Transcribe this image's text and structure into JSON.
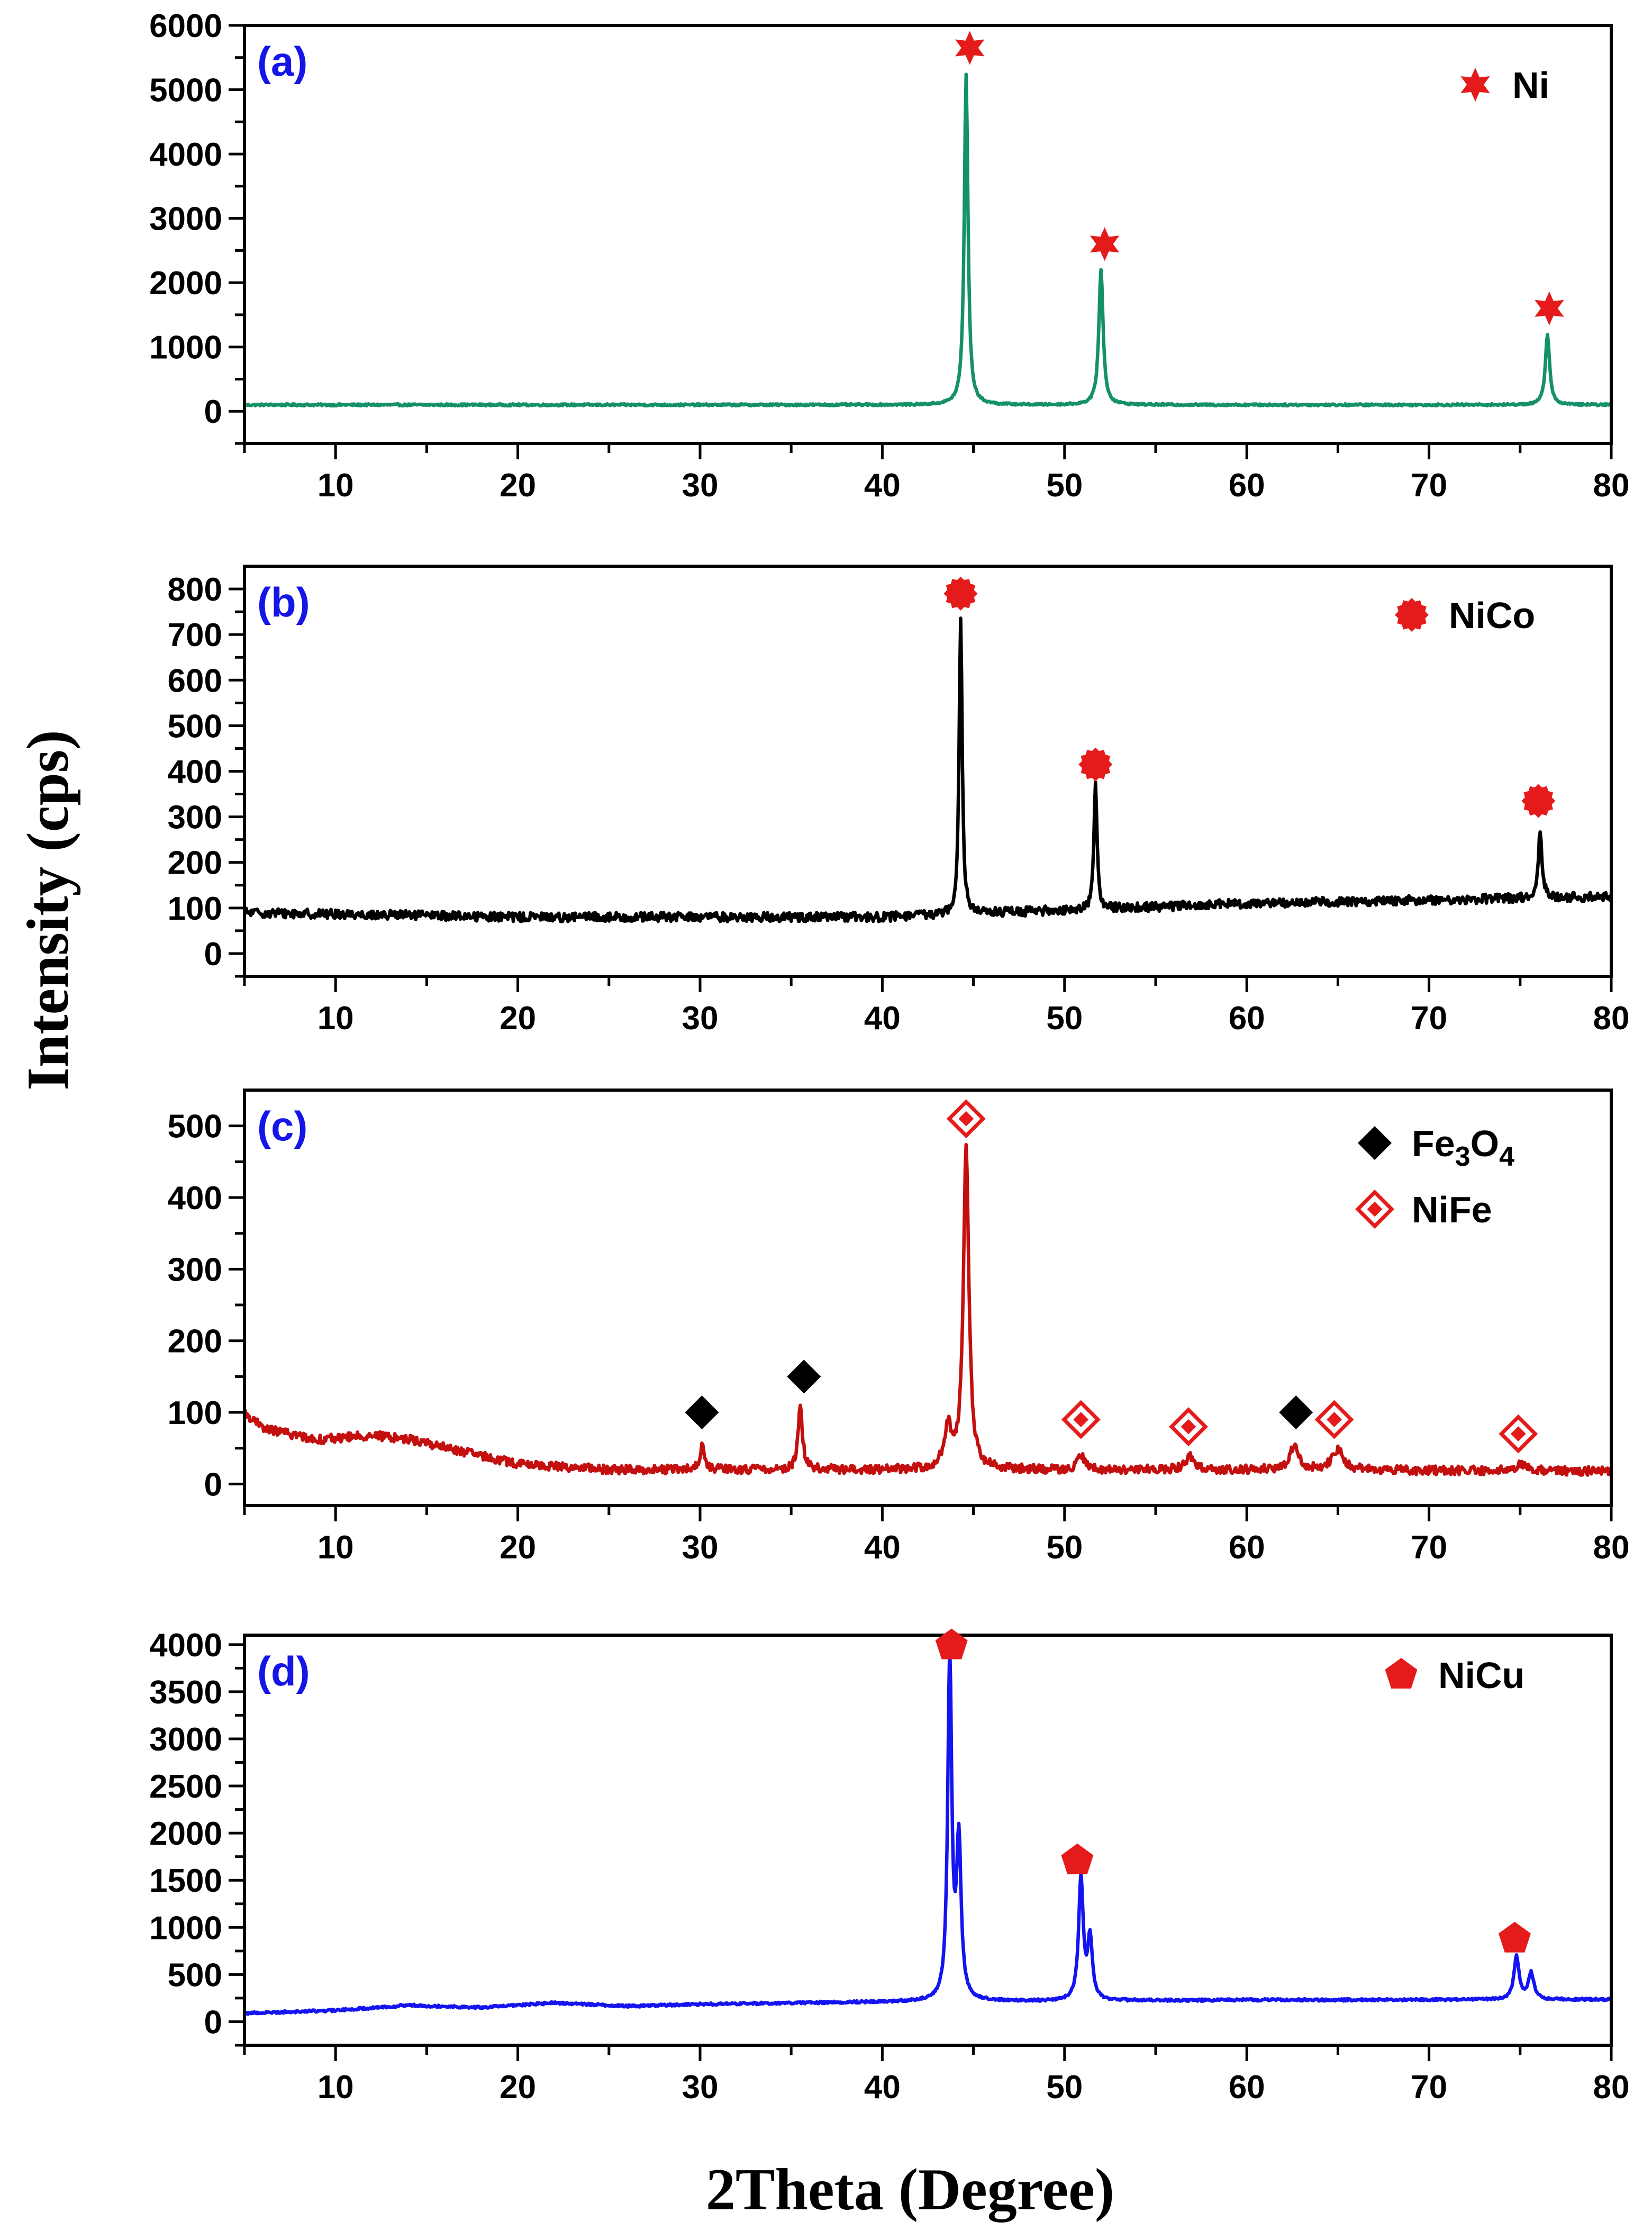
{
  "figure": {
    "xlabel": "2Theta (Degree)",
    "ylabel": "Intensity (cps)"
  },
  "chart_data": [
    {
      "type": "line",
      "panel_label": "(a)",
      "color": "#14906a",
      "xlim": [
        5,
        80
      ],
      "ylim": [
        -500,
        6000
      ],
      "xticks": [
        10,
        20,
        30,
        40,
        50,
        60,
        70,
        80
      ],
      "yticks": [
        0,
        1000,
        2000,
        3000,
        4000,
        5000,
        6000
      ],
      "baseline": [
        [
          5,
          100
        ],
        [
          80,
          100
        ]
      ],
      "noise": 15,
      "peaks": [
        {
          "x": 44.6,
          "y": 5150,
          "w": 0.12
        },
        {
          "x": 52.0,
          "y": 2100,
          "w": 0.14
        },
        {
          "x": 76.5,
          "y": 1100,
          "w": 0.14
        }
      ],
      "markers": [
        {
          "x": 44.8,
          "y": 5650,
          "symbol": "star6"
        },
        {
          "x": 52.2,
          "y": 2600,
          "symbol": "star6"
        },
        {
          "x": 76.6,
          "y": 1600,
          "symbol": "star6"
        }
      ],
      "legend": [
        {
          "symbol": "star6",
          "label": "Ni"
        }
      ]
    },
    {
      "type": "line",
      "panel_label": "(b)",
      "color": "#000000",
      "xlim": [
        5,
        80
      ],
      "ylim": [
        -50,
        850
      ],
      "xticks": [
        10,
        20,
        30,
        40,
        50,
        60,
        70,
        80
      ],
      "yticks": [
        0,
        100,
        200,
        300,
        400,
        500,
        600,
        700,
        800
      ],
      "baseline": [
        [
          5,
          90
        ],
        [
          20,
          80
        ],
        [
          40,
          80
        ],
        [
          60,
          110
        ],
        [
          80,
          125
        ]
      ],
      "noise": 10,
      "peaks": [
        {
          "x": 44.3,
          "y": 655,
          "w": 0.1
        },
        {
          "x": 51.7,
          "y": 275,
          "w": 0.1
        },
        {
          "x": 76.1,
          "y": 150,
          "w": 0.12
        }
      ],
      "markers": [
        {
          "x": 44.3,
          "y": 790,
          "symbol": "burst"
        },
        {
          "x": 51.7,
          "y": 415,
          "symbol": "burst"
        },
        {
          "x": 76.0,
          "y": 335,
          "symbol": "burst"
        }
      ],
      "legend": [
        {
          "symbol": "burst",
          "label": "NiCo"
        }
      ]
    },
    {
      "type": "line",
      "panel_label": "(c)",
      "color": "#c40f0f",
      "xlim": [
        5,
        80
      ],
      "ylim": [
        -30,
        550
      ],
      "xticks": [
        10,
        20,
        30,
        40,
        50,
        60,
        70,
        80
      ],
      "yticks": [
        0,
        100,
        200,
        300,
        400,
        500
      ],
      "baseline": [
        [
          5,
          100
        ],
        [
          6,
          78
        ],
        [
          9,
          62
        ],
        [
          12,
          68
        ],
        [
          14,
          63
        ],
        [
          17,
          45
        ],
        [
          20,
          28
        ],
        [
          25,
          20
        ],
        [
          40,
          20
        ],
        [
          60,
          20
        ],
        [
          80,
          18
        ]
      ],
      "noise": 6,
      "peaks": [
        {
          "x": 30.1,
          "y": 32,
          "w": 0.15
        },
        {
          "x": 35.5,
          "y": 85,
          "w": 0.15
        },
        {
          "x": 43.6,
          "y": 55,
          "w": 0.25
        },
        {
          "x": 44.6,
          "y": 450,
          "w": 0.18
        },
        {
          "x": 50.9,
          "y": 20,
          "w": 0.2
        },
        {
          "x": 56.9,
          "y": 18,
          "w": 0.3
        },
        {
          "x": 62.6,
          "y": 32,
          "w": 0.3
        },
        {
          "x": 65.0,
          "y": 30,
          "w": 0.35
        },
        {
          "x": 75.0,
          "y": 10,
          "w": 0.3
        }
      ],
      "markers": [
        {
          "x": 30.1,
          "y": 100,
          "symbol": "diamond"
        },
        {
          "x": 35.7,
          "y": 150,
          "symbol": "diamond"
        },
        {
          "x": 44.6,
          "y": 510,
          "symbol": "diamond-open"
        },
        {
          "x": 50.9,
          "y": 90,
          "symbol": "diamond-open"
        },
        {
          "x": 56.8,
          "y": 80,
          "symbol": "diamond-open"
        },
        {
          "x": 62.7,
          "y": 100,
          "symbol": "diamond"
        },
        {
          "x": 64.8,
          "y": 90,
          "symbol": "diamond-open"
        },
        {
          "x": 74.9,
          "y": 70,
          "symbol": "diamond-open"
        }
      ],
      "legend": [
        {
          "symbol": "diamond",
          "label": "Fe",
          "sub1": "3",
          "mid": "O",
          "sub2": "4"
        },
        {
          "symbol": "diamond-open",
          "label": "NiFe"
        }
      ]
    },
    {
      "type": "line",
      "panel_label": "(d)",
      "color": "#1414f0",
      "xlim": [
        5,
        80
      ],
      "ylim": [
        -250,
        4100
      ],
      "xticks": [
        10,
        20,
        30,
        40,
        50,
        60,
        70,
        80
      ],
      "yticks": [
        0,
        500,
        1000,
        1500,
        2000,
        2500,
        3000,
        3500,
        4000
      ],
      "baseline": [
        [
          5,
          90
        ],
        [
          10,
          120
        ],
        [
          14,
          175
        ],
        [
          18,
          150
        ],
        [
          22,
          200
        ],
        [
          26,
          165
        ],
        [
          30,
          185
        ],
        [
          40,
          210
        ],
        [
          60,
          230
        ],
        [
          80,
          235
        ]
      ],
      "noise": 12,
      "peaks": [
        {
          "x": 43.7,
          "y": 3650,
          "w": 0.13
        },
        {
          "x": 44.2,
          "y": 1650,
          "w": 0.15
        },
        {
          "x": 50.9,
          "y": 1300,
          "w": 0.15
        },
        {
          "x": 51.4,
          "y": 650,
          "w": 0.15
        },
        {
          "x": 74.8,
          "y": 450,
          "w": 0.17
        },
        {
          "x": 75.6,
          "y": 280,
          "w": 0.18
        }
      ],
      "markers": [
        {
          "x": 43.8,
          "y": 3990,
          "symbol": "pentagon"
        },
        {
          "x": 50.7,
          "y": 1710,
          "symbol": "pentagon"
        },
        {
          "x": 74.7,
          "y": 880,
          "symbol": "pentagon"
        }
      ],
      "legend": [
        {
          "symbol": "pentagon",
          "label": "NiCu"
        }
      ]
    }
  ]
}
